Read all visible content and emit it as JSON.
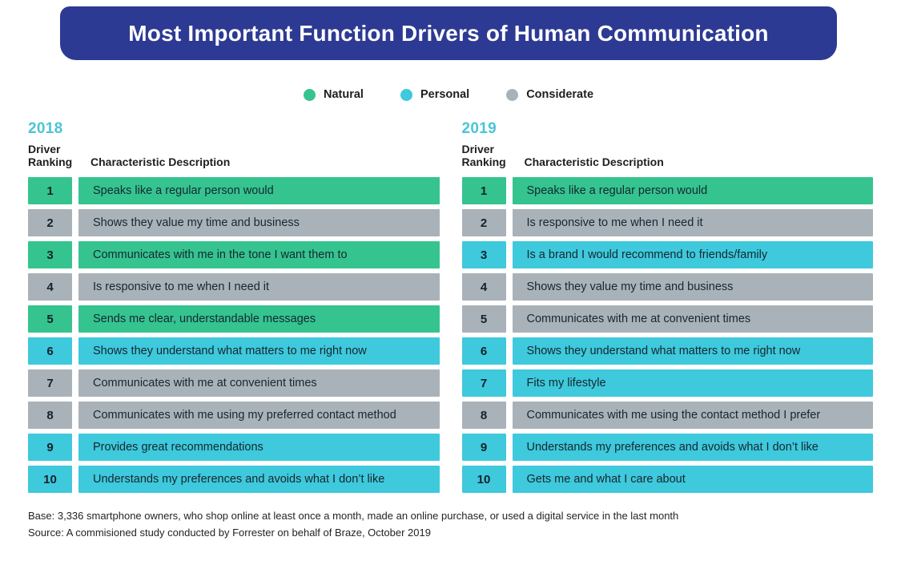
{
  "title": "Most Important Function Drivers of Human Communication",
  "colors": {
    "banner": "#2D3A93",
    "year_label": "#4BC4D6",
    "natural": "#35C48F",
    "personal": "#3EC9DC",
    "considerate": "#A9B2B8"
  },
  "legend": [
    {
      "label": "Natural",
      "category": "natural"
    },
    {
      "label": "Personal",
      "category": "personal"
    },
    {
      "label": "Considerate",
      "category": "considerate"
    }
  ],
  "chart_data": {
    "type": "table",
    "title": "Most Important Function Drivers of Human Communication",
    "categories_legend": [
      "Natural",
      "Personal",
      "Considerate"
    ],
    "tables": [
      {
        "year": "2018",
        "columns": [
          "Driver Ranking",
          "Characteristic Description"
        ],
        "rows": [
          {
            "rank": "1",
            "text": "Speaks like a regular person would",
            "category": "natural"
          },
          {
            "rank": "2",
            "text": "Shows they value my time and business",
            "category": "considerate"
          },
          {
            "rank": "3",
            "text": "Communicates with me in the tone I want them to",
            "category": "natural"
          },
          {
            "rank": "4",
            "text": "Is responsive to me when I need it",
            "category": "considerate"
          },
          {
            "rank": "5",
            "text": "Sends me clear, understandable messages",
            "category": "natural"
          },
          {
            "rank": "6",
            "text": "Shows they understand what matters to me right now",
            "category": "personal"
          },
          {
            "rank": "7",
            "text": "Communicates with me at convenient times",
            "category": "considerate"
          },
          {
            "rank": "8",
            "text": "Communicates with me using my preferred contact method",
            "category": "considerate"
          },
          {
            "rank": "9",
            "text": "Provides great recommendations",
            "category": "personal"
          },
          {
            "rank": "10",
            "text": "Understands my preferences and avoids what I don’t like",
            "category": "personal"
          }
        ]
      },
      {
        "year": "2019",
        "columns": [
          "Driver Ranking",
          "Characteristic Description"
        ],
        "rows": [
          {
            "rank": "1",
            "text": "Speaks like a regular person would",
            "category": "natural"
          },
          {
            "rank": "2",
            "text": "Is responsive to me when I need it",
            "category": "considerate"
          },
          {
            "rank": "3",
            "text": "Is a brand I would recommend to friends/family",
            "category": "personal"
          },
          {
            "rank": "4",
            "text": "Shows they value my time and business",
            "category": "considerate"
          },
          {
            "rank": "5",
            "text": "Communicates with me at convenient times",
            "category": "considerate"
          },
          {
            "rank": "6",
            "text": "Shows they understand what matters to me right now",
            "category": "personal"
          },
          {
            "rank": "7",
            "text": "Fits my lifestyle",
            "category": "personal"
          },
          {
            "rank": "8",
            "text": "Communicates with me using the contact method I prefer",
            "category": "considerate"
          },
          {
            "rank": "9",
            "text": "Understands my preferences and avoids what I don’t like",
            "category": "personal"
          },
          {
            "rank": "10",
            "text": "Gets me and what I care about",
            "category": "personal"
          }
        ]
      }
    ]
  },
  "footnotes": {
    "base": "Base: 3,336 smartphone owners, who shop online at least once a month, made an online purchase, or used a digital service in the last month",
    "source": "Source: A commisioned study conducted by Forrester on behalf of Braze, October 2019"
  }
}
